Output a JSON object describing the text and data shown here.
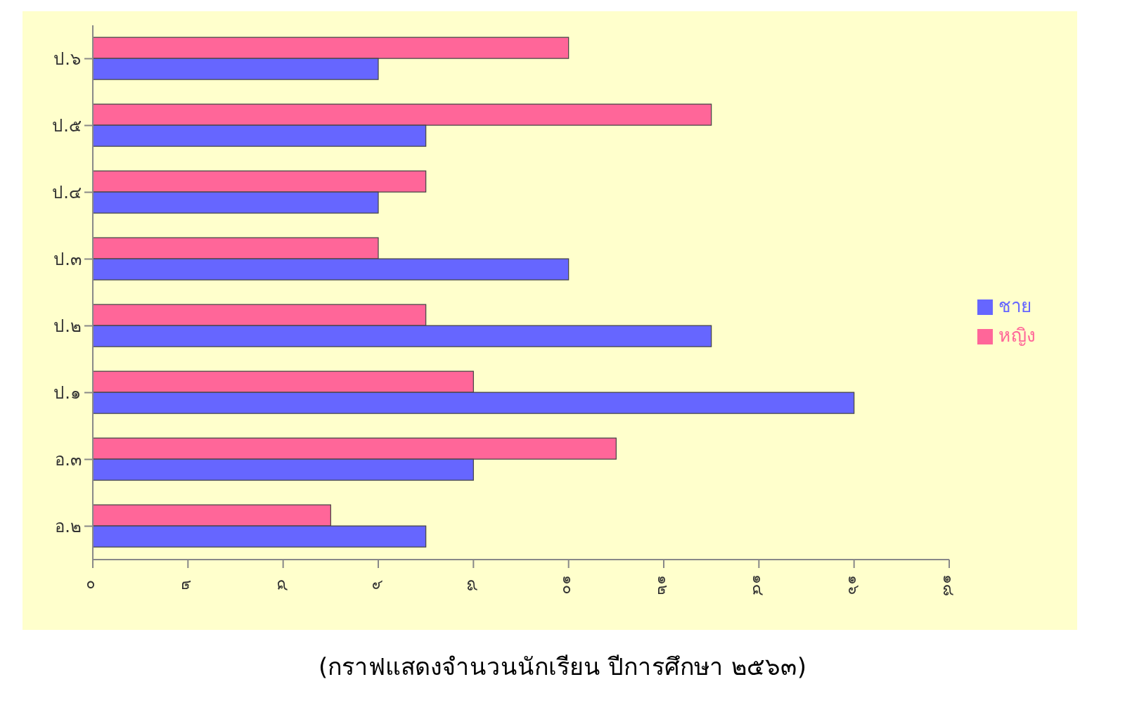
{
  "chart_data": {
    "type": "bar",
    "orientation": "horizontal",
    "title": "(กราฟแสดงจำนวนนักเรียน ปีการศึกษา ๒๕๖๓)",
    "categories": [
      "ป.๖",
      "ป.๕",
      "ป.๔",
      "ป.๓",
      "ป.๒",
      "ป.๑",
      "อ.๓",
      "อ.๒"
    ],
    "series": [
      {
        "name": "หญิง",
        "color": "#ff6699",
        "values": [
          10,
          13,
          7,
          6,
          7,
          8,
          11,
          5
        ]
      },
      {
        "name": "ชาย",
        "color": "#6666ff",
        "values": [
          6,
          7,
          6,
          10,
          13,
          16,
          8,
          7
        ]
      }
    ],
    "xlim": [
      0,
      18
    ],
    "xticks": [
      {
        "value": 0,
        "label": "๐"
      },
      {
        "value": 2,
        "label": "๒"
      },
      {
        "value": 4,
        "label": "๔"
      },
      {
        "value": 6,
        "label": "๖"
      },
      {
        "value": 8,
        "label": "๘"
      },
      {
        "value": 10,
        "label": "๑๐"
      },
      {
        "value": 12,
        "label": "๑๒"
      },
      {
        "value": 14,
        "label": "๑๔"
      },
      {
        "value": 16,
        "label": "๑๖"
      },
      {
        "value": 18,
        "label": "๑๘"
      }
    ],
    "grid": false,
    "legend": "right"
  }
}
